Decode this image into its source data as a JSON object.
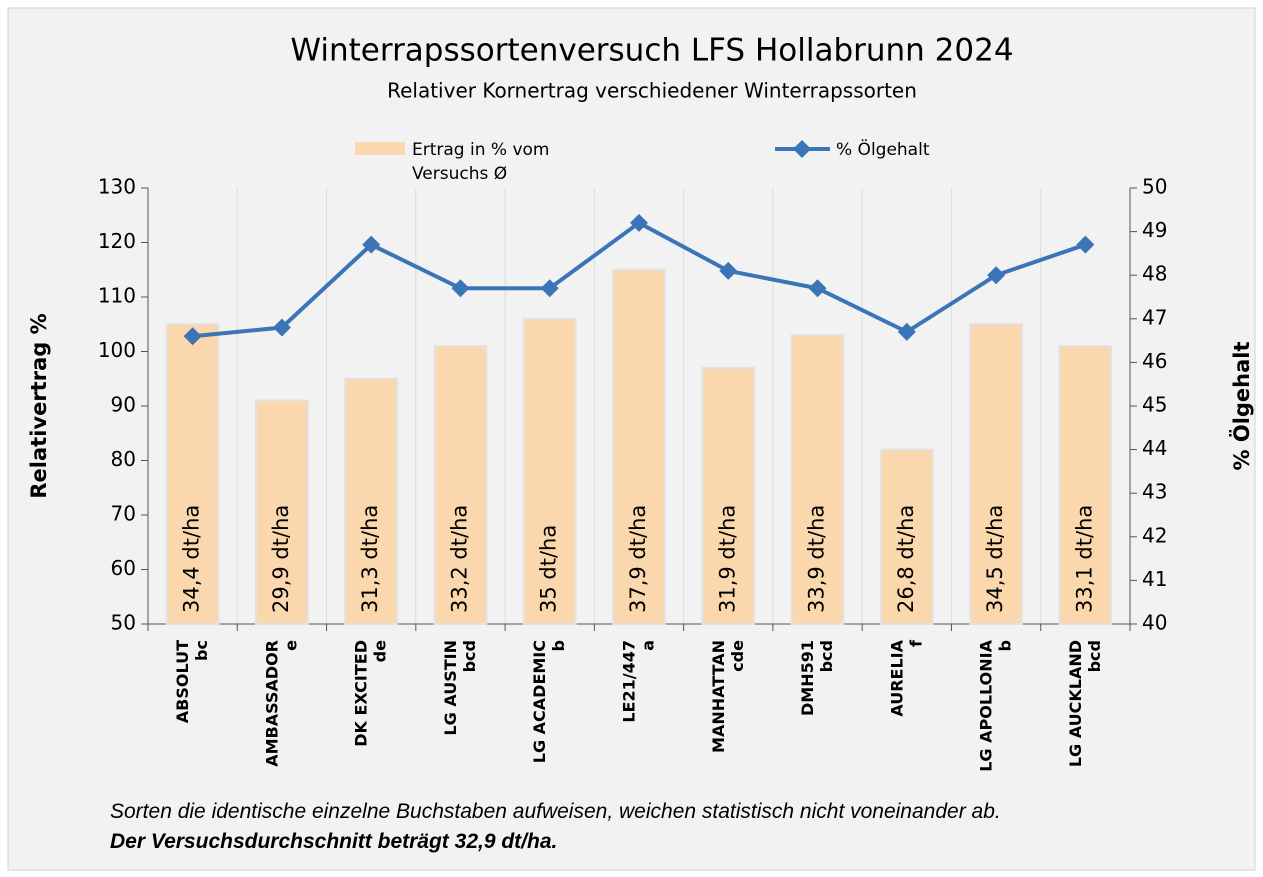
{
  "chart_data": {
    "type": "combo",
    "title": "Winterrapssortenversuch LFS Hollabrunn 2024",
    "subtitle": "Relativer Kornertrag verschiedener Winterrapssorten",
    "ylabel": "Relativertrag %",
    "y2label": "% Ölgehalt",
    "categories": [
      "ABSOLUT",
      "AMBASSADOR",
      "DK EXCITED",
      "LG AUSTIN",
      "LG ACADEMIC",
      "LE21/447",
      "MANHATTAN",
      "DMH591",
      "AURELIA",
      "LG APOLLONIA",
      "LG AUCKLAND"
    ],
    "groups": [
      "bc",
      "e",
      "de",
      "bcd",
      "b",
      "a",
      "cde",
      "bcd",
      "f",
      "b",
      "bcd"
    ],
    "bar_labels": [
      "34,4 dt/ha",
      "29,9 dt/ha",
      "31,3 dt/ha",
      "33,2 dt/ha",
      "35 dt/ha",
      "37,9 dt/ha",
      "31,9 dt/ha",
      "33,9 dt/ha",
      "26,8 dt/ha",
      "34,5 dt/ha",
      "33,1 dt/ha"
    ],
    "series": [
      {
        "name": "Ertrag in % vom Versuchs Ø",
        "type": "bar",
        "color": "#fad7ac",
        "values": [
          105,
          91,
          95,
          101,
          106,
          115,
          97,
          103,
          82,
          105,
          101
        ]
      },
      {
        "name": "% Ölgehalt",
        "type": "line",
        "axis": "y2",
        "color": "#3b75b8",
        "values": [
          46.6,
          46.8,
          48.7,
          47.7,
          47.7,
          49.2,
          48.1,
          47.7,
          46.7,
          48.0,
          48.7
        ]
      }
    ],
    "ylim": [
      50,
      130
    ],
    "yticks": [
      50,
      60,
      70,
      80,
      90,
      100,
      110,
      120,
      130
    ],
    "y2lim": [
      40,
      50
    ],
    "y2ticks": [
      40,
      41,
      42,
      43,
      44,
      45,
      46,
      47,
      48,
      49,
      50
    ],
    "grid": "vertical",
    "notes": [
      "Sorten die identische einzelne Buchstaben aufweisen, weichen statistisch nicht voneinander ab.",
      "Der Versuchsdurchschnitt beträgt 32,9 dt/ha."
    ]
  }
}
